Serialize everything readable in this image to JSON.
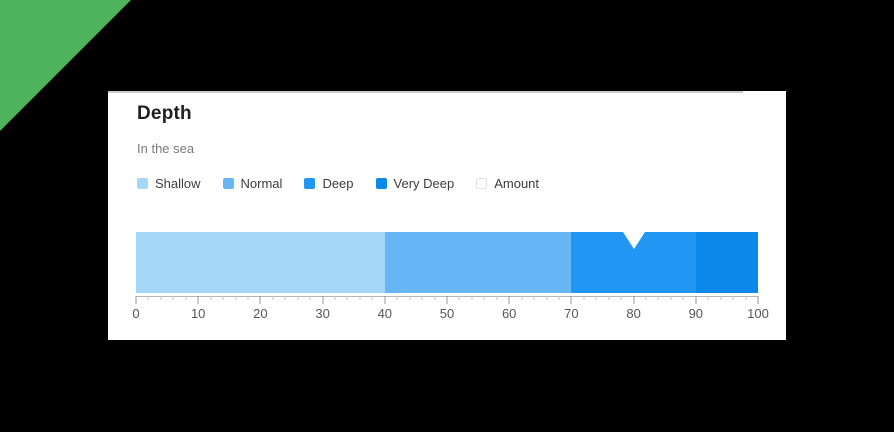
{
  "page": {
    "background": "#000000",
    "corner_triangle_color": "#4db45c",
    "card_background": "#ffffff"
  },
  "chart_data": {
    "type": "bar",
    "orientation": "horizontal",
    "title": "Depth",
    "subtitle": "In the sea",
    "series": [
      {
        "name": "Shallow",
        "from": 0,
        "to": 40,
        "color": "#a5d8f8"
      },
      {
        "name": "Normal",
        "from": 40,
        "to": 70,
        "color": "#67b7f7"
      },
      {
        "name": "Deep",
        "from": 70,
        "to": 90,
        "color": "#2196f3"
      },
      {
        "name": "Very Deep",
        "from": 90,
        "to": 100,
        "color": "#0b88e9"
      }
    ],
    "marker": {
      "name": "Amount",
      "value": 80,
      "color": "#ffffff"
    },
    "legend": [
      {
        "label": "Shallow",
        "color": "#a5d8f8"
      },
      {
        "label": "Normal",
        "color": "#67b7f7"
      },
      {
        "label": "Deep",
        "color": "#2196f3"
      },
      {
        "label": "Very Deep",
        "color": "#0b88e9"
      },
      {
        "label": "Amount",
        "color": "#ffffff",
        "border": "#e2e2e2"
      }
    ],
    "axis": {
      "min": 0,
      "max": 100,
      "major_tick_interval": 10,
      "minor_tick_interval": 2,
      "tick_labels": [
        "0",
        "10",
        "20",
        "30",
        "40",
        "50",
        "60",
        "70",
        "80",
        "90",
        "100"
      ]
    },
    "legend_position": "top",
    "grid": false
  }
}
